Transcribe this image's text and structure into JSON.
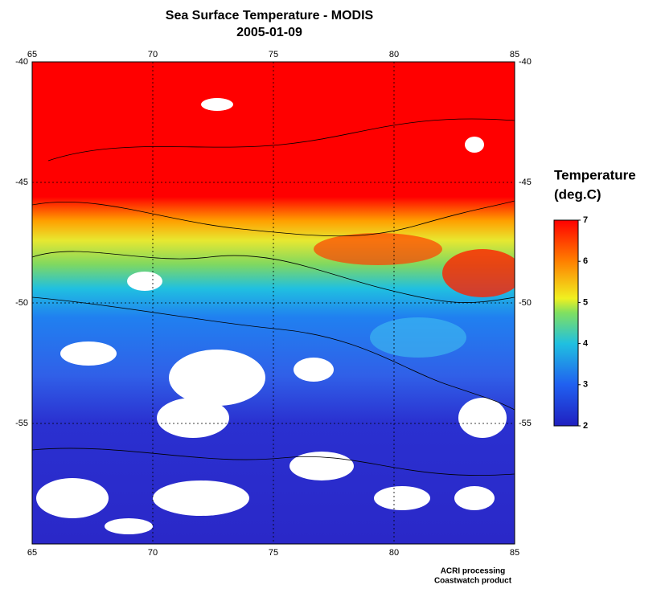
{
  "title": "Sea Surface Temperature - MODIS",
  "subtitle": "2005-01-09",
  "map": {
    "xlim": [
      65,
      85
    ],
    "ylim": [
      -60,
      -40
    ],
    "xticks": [
      65,
      70,
      75,
      80,
      85
    ],
    "yticks": [
      -40,
      -45,
      -50,
      -55
    ],
    "grid": true
  },
  "colorbar": {
    "title": [
      "Temperature",
      "(deg.C)"
    ],
    "range": [
      2,
      7
    ],
    "ticks": [
      2,
      3,
      4,
      5,
      6,
      7
    ]
  },
  "credits": [
    "ACRI processing",
    "Coastwatch product"
  ]
}
